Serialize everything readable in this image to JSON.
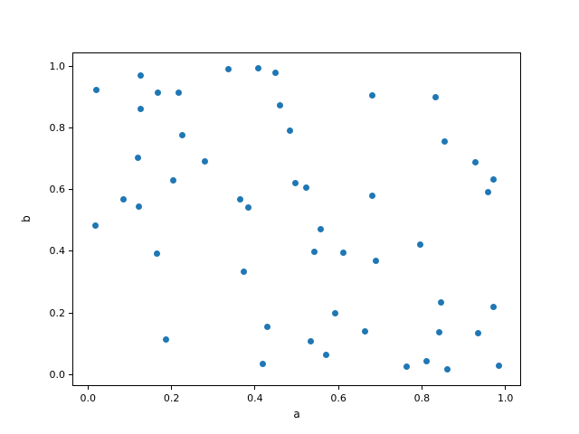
{
  "figure": {
    "background_color": "#ffffff",
    "spine_color": "#000000"
  },
  "chart_data": {
    "type": "scatter",
    "title": "",
    "xlabel": "a",
    "ylabel": "b",
    "marker_color": "#1f77b4",
    "marker_diameter_px": 7,
    "grid": false,
    "legend": null,
    "x_ticks": [
      0.0,
      0.2,
      0.4,
      0.6,
      0.8,
      1.0
    ],
    "y_ticks": [
      0.0,
      0.2,
      0.4,
      0.6,
      0.8,
      1.0
    ],
    "xlim": [
      -0.0375,
      1.0375
    ],
    "ylim": [
      -0.0381,
      1.0465
    ],
    "points": [
      [
        0.021,
        0.924
      ],
      [
        0.126,
        0.97
      ],
      [
        0.167,
        0.914
      ],
      [
        0.218,
        0.914
      ],
      [
        0.127,
        0.862
      ],
      [
        0.337,
        0.99
      ],
      [
        0.407,
        0.995
      ],
      [
        0.45,
        0.978
      ],
      [
        0.459,
        0.874
      ],
      [
        0.483,
        0.792
      ],
      [
        0.226,
        0.778
      ],
      [
        0.119,
        0.703
      ],
      [
        0.279,
        0.692
      ],
      [
        0.205,
        0.631
      ],
      [
        0.085,
        0.569
      ],
      [
        0.121,
        0.545
      ],
      [
        0.365,
        0.568
      ],
      [
        0.384,
        0.543
      ],
      [
        0.68,
        0.906
      ],
      [
        0.833,
        0.899
      ],
      [
        0.855,
        0.756
      ],
      [
        0.928,
        0.69
      ],
      [
        0.971,
        0.634
      ],
      [
        0.959,
        0.592
      ],
      [
        0.496,
        0.622
      ],
      [
        0.523,
        0.608
      ],
      [
        0.681,
        0.58
      ],
      [
        0.017,
        0.483
      ],
      [
        0.166,
        0.393
      ],
      [
        0.374,
        0.334
      ],
      [
        0.186,
        0.113
      ],
      [
        0.43,
        0.155
      ],
      [
        0.419,
        0.033
      ],
      [
        0.557,
        0.472
      ],
      [
        0.543,
        0.397
      ],
      [
        0.612,
        0.394
      ],
      [
        0.69,
        0.369
      ],
      [
        0.796,
        0.421
      ],
      [
        0.845,
        0.233
      ],
      [
        0.972,
        0.22
      ],
      [
        0.593,
        0.198
      ],
      [
        0.664,
        0.14
      ],
      [
        0.841,
        0.137
      ],
      [
        0.935,
        0.134
      ],
      [
        0.533,
        0.109
      ],
      [
        0.571,
        0.063
      ],
      [
        0.763,
        0.027
      ],
      [
        0.81,
        0.043
      ],
      [
        0.861,
        0.018
      ],
      [
        0.984,
        0.028
      ]
    ]
  }
}
